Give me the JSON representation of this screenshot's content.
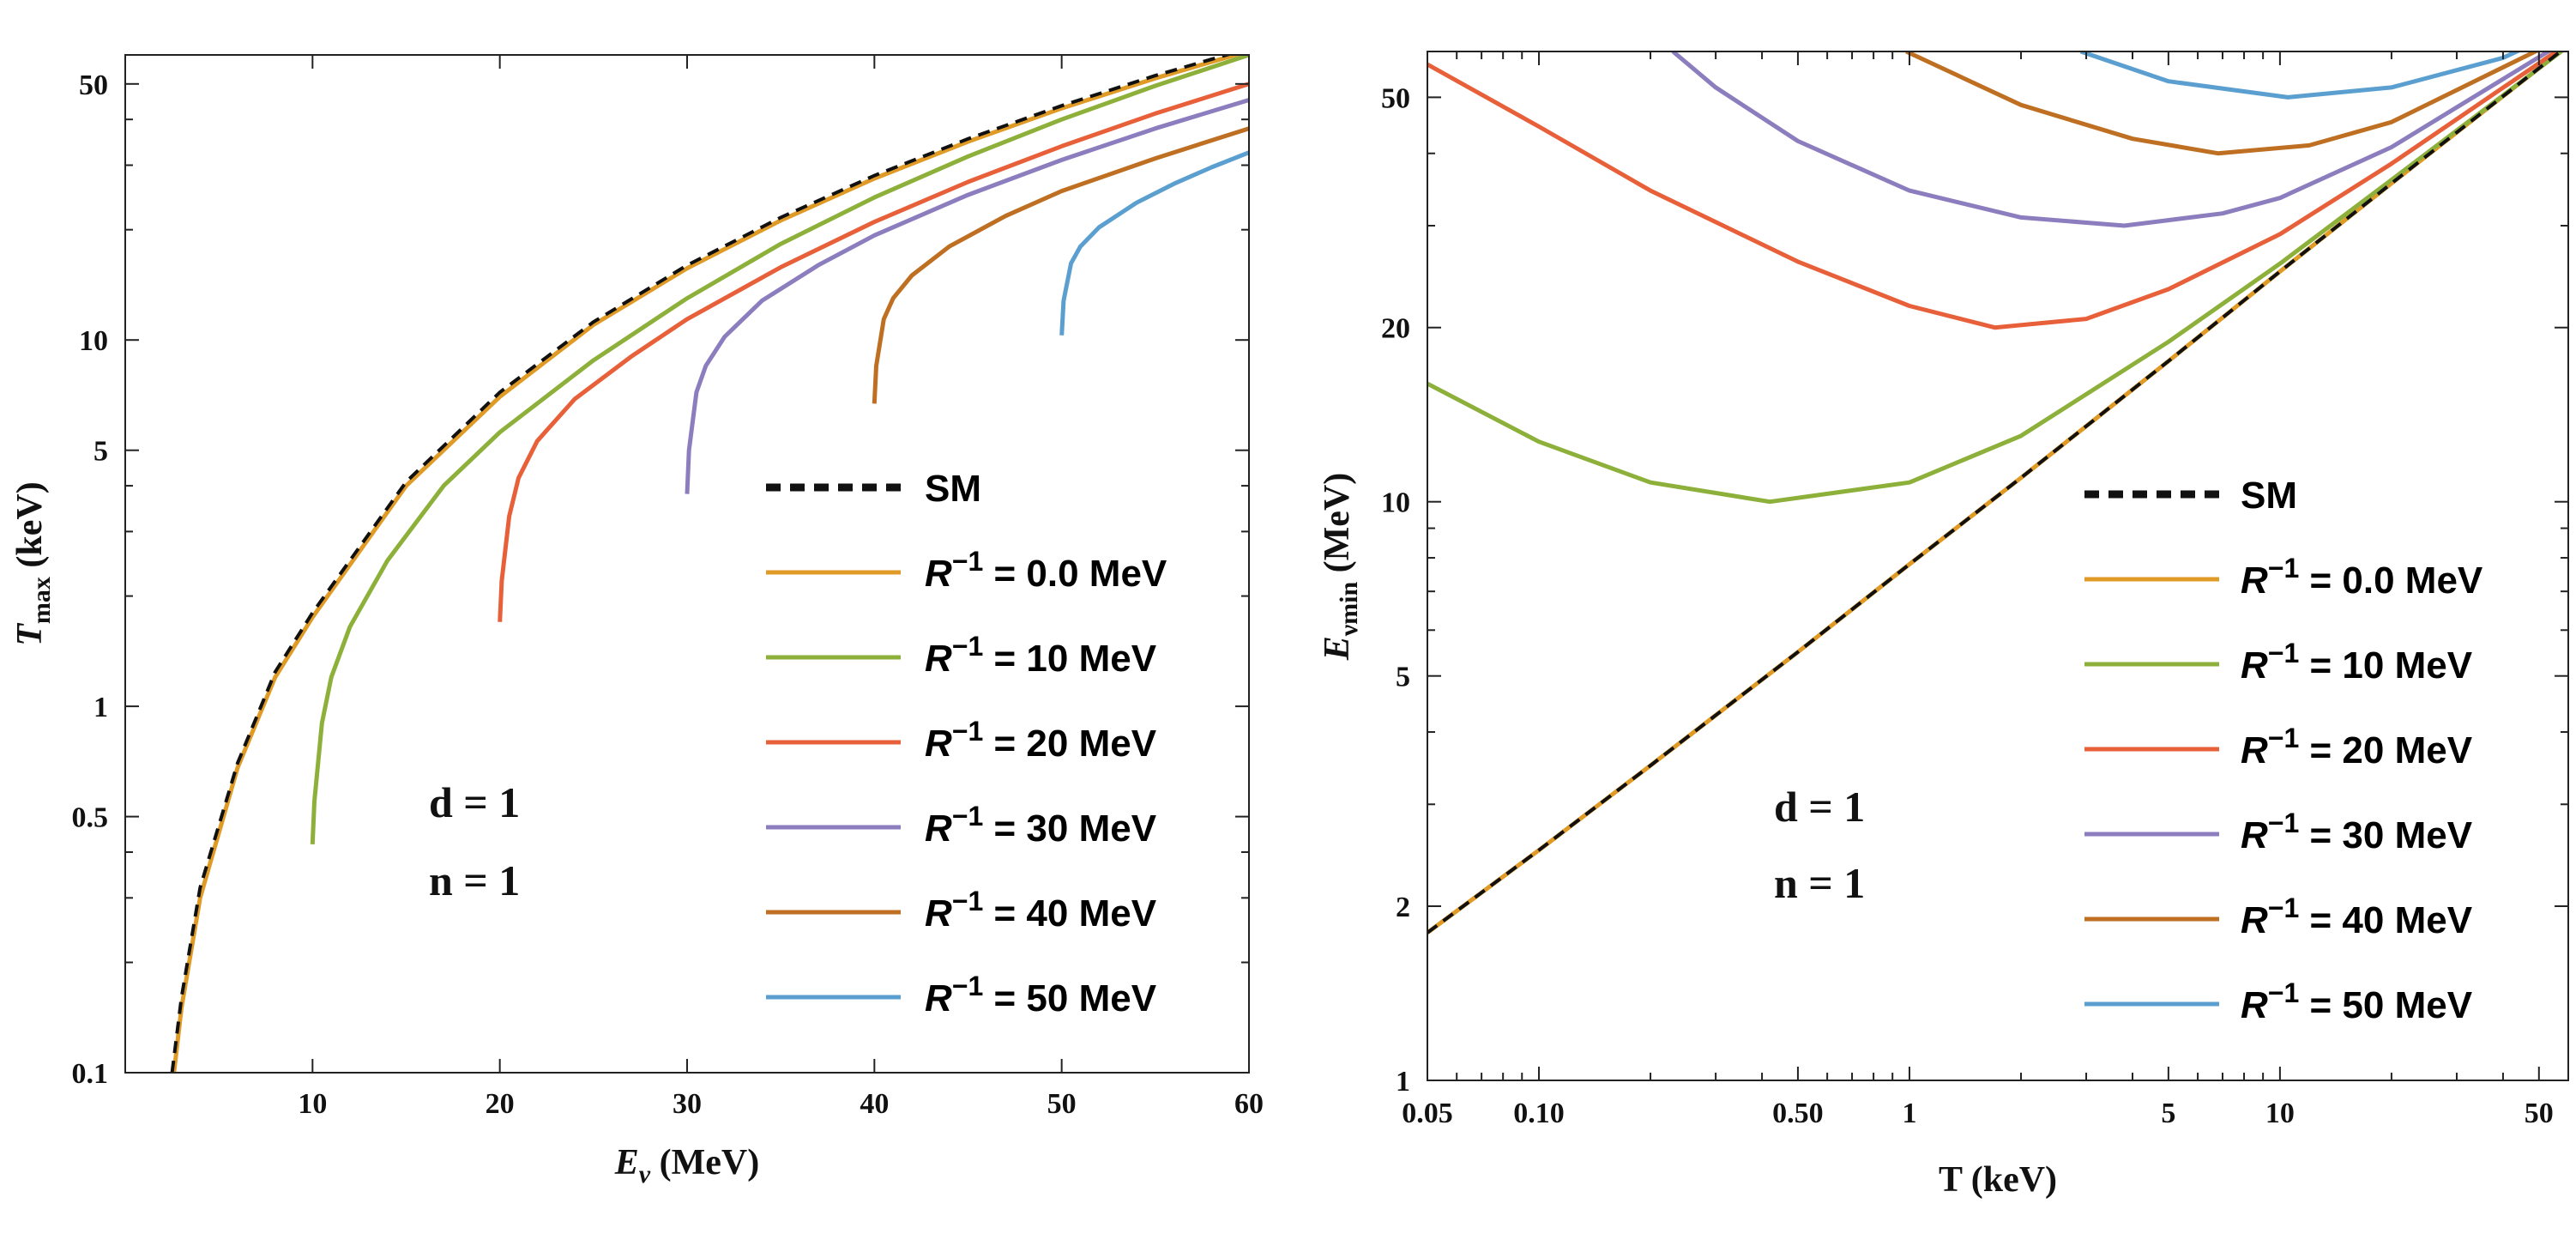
{
  "chart_data": [
    {
      "type": "line",
      "panel": "left",
      "xlabel": "E",
      "xlabel_sub": "ν",
      "xlabel_unit": " (MeV)",
      "ylabel": "T",
      "ylabel_sub": "max",
      "ylabel_unit": " (keV)",
      "xscale": "linear",
      "yscale": "log",
      "xlim": [
        0,
        60
      ],
      "ylim": [
        0.1,
        60
      ],
      "x_ticks": [
        10,
        20,
        30,
        40,
        50,
        60
      ],
      "x_tick_labels": [
        "10",
        "20",
        "30",
        "40",
        "50",
        "60"
      ],
      "y_major_ticks": [
        0.1,
        0.5,
        1,
        5,
        10,
        50
      ],
      "y_tick_labels": [
        "0.1",
        "0.5",
        "1",
        "5",
        "10",
        "50"
      ],
      "y_minor_ticks": [
        0.2,
        0.3,
        0.4,
        2,
        3,
        4,
        20,
        30,
        40
      ],
      "annotations": [
        "d = 1",
        "n = 1"
      ],
      "legend": {
        "position": "lower-right",
        "entries": [
          {
            "label": "SM",
            "style": "dashed",
            "color": "#111111"
          },
          {
            "label_prefix": "R",
            "label_sup": "−1",
            "label_suffix": " = 0.0 MeV",
            "color": "#E09A26"
          },
          {
            "label_prefix": "R",
            "label_sup": "−1",
            "label_suffix": " = 10 MeV",
            "color": "#8DB03A"
          },
          {
            "label_prefix": "R",
            "label_sup": "−1",
            "label_suffix": " = 20 MeV",
            "color": "#E8603A"
          },
          {
            "label_prefix": "R",
            "label_sup": "−1",
            "label_suffix": " = 30 MeV",
            "color": "#8C7DBE"
          },
          {
            "label_prefix": "R",
            "label_sup": "−1",
            "label_suffix": " = 40 MeV",
            "color": "#BE6F22"
          },
          {
            "label_prefix": "R",
            "label_sup": "−1",
            "label_suffix": " = 50 MeV",
            "color": "#5B9FD0"
          }
        ]
      },
      "series": [
        {
          "name": "SM",
          "x": [
            2.5,
            3,
            4,
            6,
            8,
            10,
            15,
            20,
            25,
            30,
            35,
            40,
            45,
            50,
            55,
            60
          ],
          "y": [
            0.1,
            0.16,
            0.32,
            0.7,
            1.24,
            1.8,
            4.1,
            7.2,
            11.2,
            16.0,
            21.6,
            28.1,
            35.4,
            43.6,
            52.7,
            62.5
          ]
        },
        {
          "name": "R^-1 = 0.0 MeV",
          "x": [
            2.6,
            3,
            4,
            6,
            8,
            10,
            15,
            20,
            25,
            30,
            35,
            40,
            45,
            50,
            55,
            60
          ],
          "y": [
            0.1,
            0.15,
            0.3,
            0.68,
            1.2,
            1.75,
            4.0,
            7.0,
            11.0,
            15.7,
            21.2,
            27.6,
            34.8,
            42.9,
            51.8,
            61.5
          ]
        },
        {
          "name": "R^-1 = 10 MeV",
          "x": [
            10,
            10.1,
            10.5,
            11,
            12,
            14,
            17,
            20,
            25,
            30,
            35,
            40,
            45,
            50,
            55,
            60
          ],
          "y": [
            0.42,
            0.55,
            0.9,
            1.2,
            1.65,
            2.5,
            4.0,
            5.6,
            8.8,
            13.0,
            18.3,
            24.5,
            31.7,
            40.0,
            49.4,
            60.0
          ]
        },
        {
          "name": "R^-1 = 20 MeV",
          "x": [
            20,
            20.1,
            20.5,
            21,
            22,
            24,
            27,
            30,
            35,
            40,
            45,
            50,
            55,
            60
          ],
          "y": [
            1.7,
            2.2,
            3.3,
            4.2,
            5.3,
            6.9,
            9.0,
            11.4,
            15.8,
            21.0,
            27.0,
            33.8,
            41.5,
            50.0
          ]
        },
        {
          "name": "R^-1 = 30 MeV",
          "x": [
            30,
            30.1,
            30.5,
            31,
            32,
            34,
            37,
            40,
            45,
            50,
            55,
            60
          ],
          "y": [
            3.8,
            5.0,
            7.2,
            8.5,
            10.2,
            12.8,
            16.0,
            19.3,
            24.9,
            31.0,
            37.8,
            45.2
          ]
        },
        {
          "name": "R^-1 = 40 MeV",
          "x": [
            40,
            40.1,
            40.5,
            41,
            42,
            44,
            47,
            50,
            55,
            60
          ],
          "y": [
            6.7,
            8.5,
            11.4,
            13.0,
            15.0,
            18.0,
            21.8,
            25.5,
            31.3,
            37.8
          ]
        },
        {
          "name": "R^-1 = 50 MeV",
          "x": [
            50,
            50.1,
            50.5,
            51,
            52,
            54,
            56,
            58,
            60
          ],
          "y": [
            10.3,
            12.8,
            16.2,
            18.0,
            20.3,
            23.7,
            26.7,
            29.6,
            32.5
          ]
        }
      ]
    },
    {
      "type": "line",
      "panel": "right",
      "xlabel": "T (keV)",
      "ylabel": "E",
      "ylabel_sub": "νmin",
      "ylabel_unit": " (MeV)",
      "xscale": "log",
      "yscale": "log",
      "xlim": [
        0.05,
        60
      ],
      "ylim": [
        1,
        60
      ],
      "x_major_ticks": [
        0.05,
        0.1,
        0.5,
        1,
        5,
        10,
        50
      ],
      "x_tick_labels": [
        "0.05",
        "0.10",
        "0.50",
        "1",
        "5",
        "10",
        "50"
      ],
      "x_minor_ticks": [
        0.06,
        0.07,
        0.08,
        0.09,
        0.2,
        0.3,
        0.4,
        0.6,
        0.7,
        0.8,
        0.9,
        2,
        3,
        4,
        6,
        7,
        8,
        9,
        20,
        30,
        40
      ],
      "y_major_ticks": [
        1,
        2,
        5,
        10,
        20,
        50
      ],
      "y_tick_labels": [
        "1",
        "2",
        "5",
        "10",
        "20",
        "50"
      ],
      "y_minor_ticks": [
        3,
        4,
        6,
        7,
        8,
        9,
        30,
        40
      ],
      "annotations": [
        "d = 1",
        "n = 1"
      ],
      "legend": {
        "position": "lower-right",
        "entries": [
          {
            "label": "SM",
            "style": "dashed",
            "color": "#111111"
          },
          {
            "label_prefix": "R",
            "label_sup": "−1",
            "label_suffix": " = 0.0 MeV",
            "color": "#E09A26"
          },
          {
            "label_prefix": "R",
            "label_sup": "−1",
            "label_suffix": " = 10 MeV",
            "color": "#8DB03A"
          },
          {
            "label_prefix": "R",
            "label_sup": "−1",
            "label_suffix": " = 20 MeV",
            "color": "#E8603A"
          },
          {
            "label_prefix": "R",
            "label_sup": "−1",
            "label_suffix": " = 30 MeV",
            "color": "#8C7DBE"
          },
          {
            "label_prefix": "R",
            "label_sup": "−1",
            "label_suffix": " = 40 MeV",
            "color": "#BE6F22"
          },
          {
            "label_prefix": "R",
            "label_sup": "−1",
            "label_suffix": " = 50 MeV",
            "color": "#5B9FD0"
          }
        ]
      },
      "series": [
        {
          "name": "SM",
          "x": [
            0.05,
            0.1,
            0.2,
            0.5,
            1,
            2,
            5,
            10,
            20,
            60
          ],
          "y": [
            1.8,
            2.5,
            3.5,
            5.5,
            7.8,
            11.0,
            17.5,
            25.0,
            35.5,
            61.5
          ]
        },
        {
          "name": "R^-1 = 0.0 MeV",
          "x": [
            0.05,
            0.1,
            0.2,
            0.5,
            1,
            2,
            5,
            10,
            20,
            60
          ],
          "y": [
            1.8,
            2.5,
            3.5,
            5.5,
            7.8,
            11.0,
            17.5,
            25.0,
            35.5,
            61.5
          ]
        },
        {
          "name": "R^-1 = 10 MeV",
          "x": [
            0.05,
            0.1,
            0.2,
            0.42,
            1,
            2,
            5,
            10,
            20,
            60
          ],
          "y": [
            16.0,
            12.7,
            10.8,
            10.0,
            10.8,
            13.0,
            18.9,
            25.8,
            36.0,
            61.3
          ]
        },
        {
          "name": "R^-1 = 20 MeV",
          "x": [
            0.05,
            0.1,
            0.2,
            0.5,
            1,
            1.7,
            3,
            5,
            10,
            20,
            60
          ],
          "y": [
            57.0,
            44.5,
            34.5,
            26.0,
            21.8,
            20.0,
            20.7,
            23.3,
            29.0,
            38.4,
            62.0
          ]
        },
        {
          "name": "R^-1 = 30 MeV",
          "x": [
            0.23,
            0.3,
            0.5,
            1,
            2,
            3.8,
            7,
            10,
            20,
            60
          ],
          "y": [
            60.0,
            52.0,
            42.0,
            34.5,
            31.0,
            30.0,
            31.5,
            33.5,
            41.0,
            63.0
          ]
        },
        {
          "name": "R^-1 = 40 MeV",
          "x": [
            0.98,
            2,
            4,
            6.8,
            12,
            20,
            60
          ],
          "y": [
            60.0,
            48.5,
            42.4,
            40.0,
            41.3,
            45.3,
            64.0
          ]
        },
        {
          "name": "R^-1 = 50 MeV",
          "x": [
            2.9,
            5,
            10.5,
            20,
            40,
            60
          ],
          "y": [
            60.0,
            53.3,
            50.0,
            52.0,
            58.5,
            66.0
          ]
        }
      ]
    }
  ]
}
